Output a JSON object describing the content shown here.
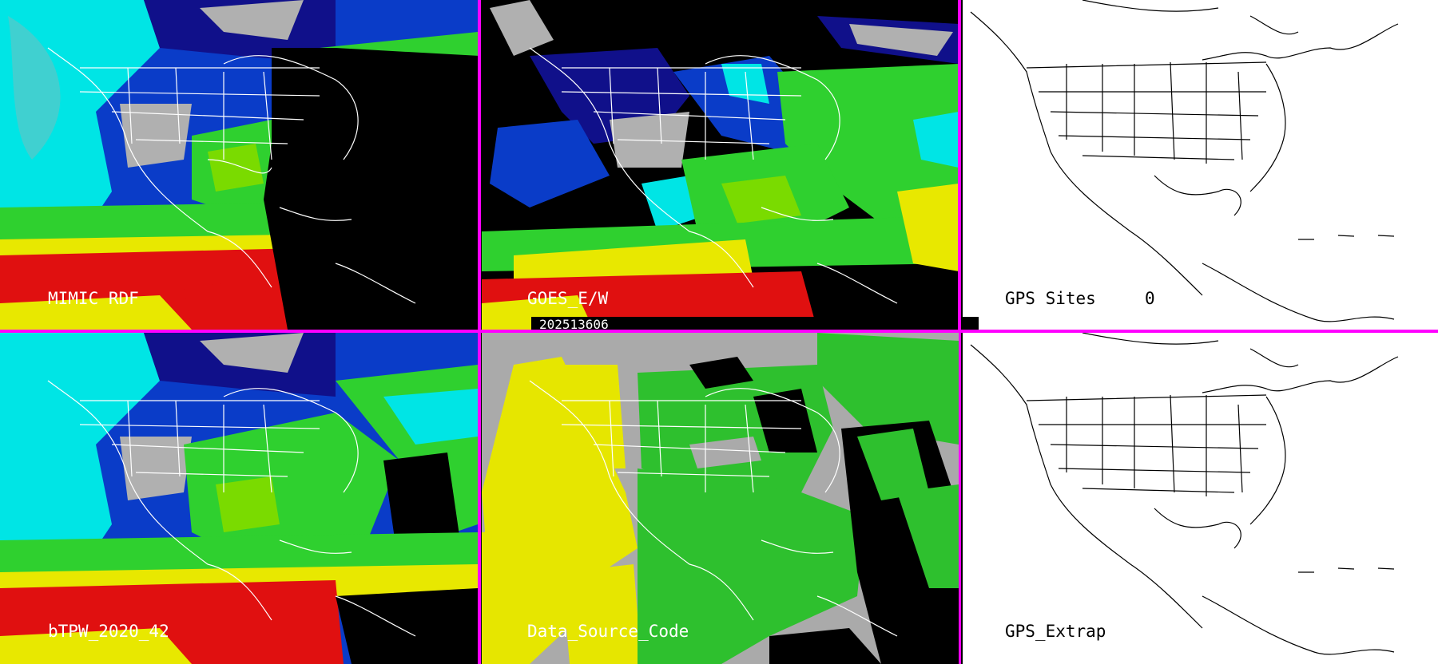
{
  "panels": {
    "p1": {
      "label": "MIMIC RDF"
    },
    "p2": {
      "label": "GOES_E/W"
    },
    "p3": {
      "label": "GPS Sites",
      "count": "0"
    },
    "p4": {
      "label": "bTPW_2020_42"
    },
    "p5": {
      "label": "Data_Source_Code"
    },
    "p6": {
      "label": "GPS_Extrap"
    }
  },
  "timestamp": "202513606",
  "colors": {
    "divider": "#ff00ff",
    "ocean_bg": "#000000",
    "tpw_palette": [
      "#00e5e5",
      "#0a3cc8",
      "#10108a",
      "#b0b0b0",
      "#2fd02f",
      "#7adb00",
      "#e8e800",
      "#e01010",
      "#a000c0"
    ],
    "source_palette": [
      "#e6e600",
      "#2ec02e",
      "#aaaaaa",
      "#000000"
    ]
  }
}
